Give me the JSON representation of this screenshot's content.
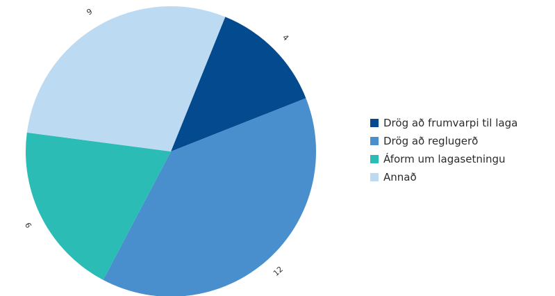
{
  "chart_data": {
    "type": "pie",
    "title": "",
    "categories": [
      "Drög að frumvarpi til laga",
      "Drög að reglugerð",
      "Áform um lagasetningu",
      "Annað"
    ],
    "values": [
      4,
      12,
      6,
      9
    ],
    "colors": [
      "#034a8e",
      "#4a8fcd",
      "#2bbcb5",
      "#bcdbf3"
    ],
    "data_labels": [
      "4",
      "12",
      "6",
      "9"
    ],
    "legend_position": "right"
  }
}
